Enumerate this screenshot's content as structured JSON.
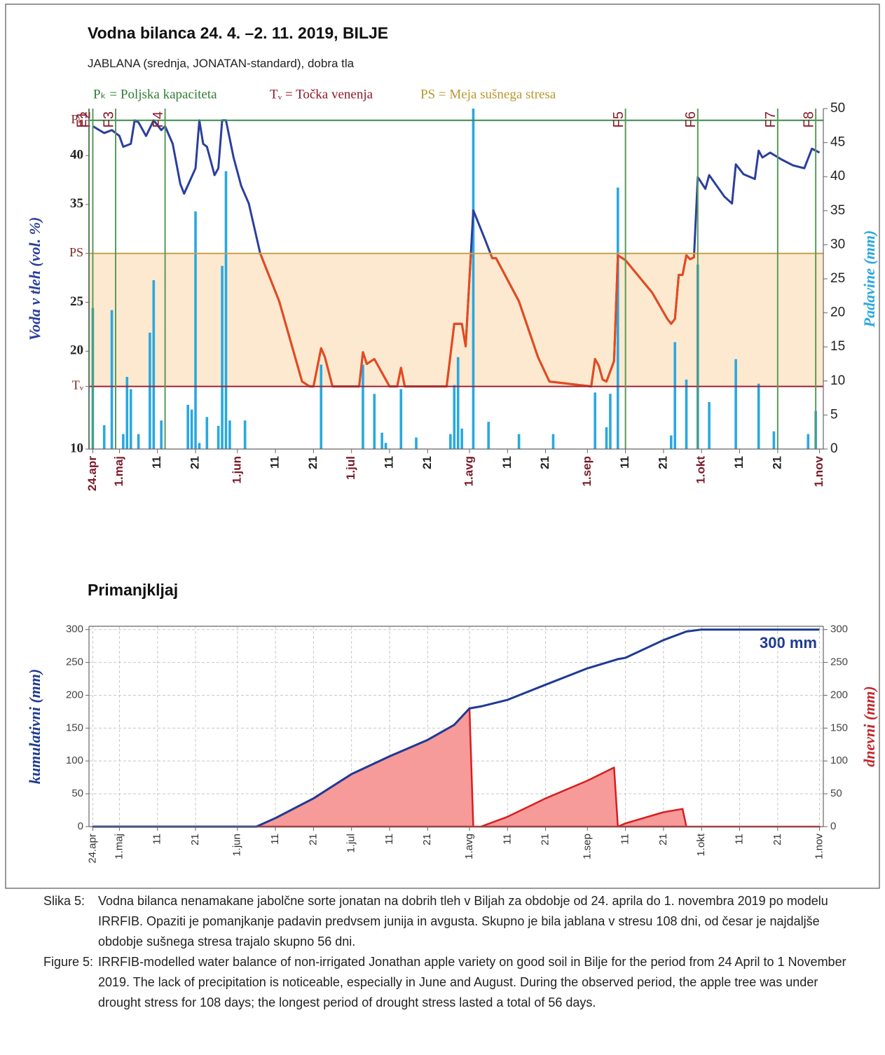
{
  "chart_data": [
    {
      "type": "line",
      "title": "Vodna bilanca 24. 4. –2. 11. 2019, BILJE",
      "subtitle": "JABLANA (srednja, JONATAN-standard), dobra tla",
      "annotations": [
        {
          "text": "Pₖ = Poljska kapaciteta",
          "color": "#2e7d32"
        },
        {
          "text": "Tᵥ = Točka venenja",
          "color": "#8b1a2b"
        },
        {
          "text": "PS = Meja sušnega stresa",
          "color": "#b8962e"
        }
      ],
      "ylabel": "Voda v tleh (vol. %)",
      "ylabel_color": "#2b3f9e",
      "y2label": "Padavine (mm)",
      "y2label_color": "#29a8e0",
      "xlim": [
        "2019-04-23",
        "2019-11-02"
      ],
      "xticks": [
        {
          "value": "2019-04-24",
          "label": "24.apr"
        },
        {
          "value": "2019-05-01",
          "label": "1.maj"
        },
        {
          "value": "2019-05-11",
          "label": "11"
        },
        {
          "value": "2019-05-21",
          "label": "21"
        },
        {
          "value": "2019-06-01",
          "label": "1.jun"
        },
        {
          "value": "2019-06-11",
          "label": "11"
        },
        {
          "value": "2019-06-21",
          "label": "21"
        },
        {
          "value": "2019-07-01",
          "label": "1.jul"
        },
        {
          "value": "2019-07-11",
          "label": "11"
        },
        {
          "value": "2019-07-21",
          "label": "21"
        },
        {
          "value": "2019-08-01",
          "label": "1.avg"
        },
        {
          "value": "2019-08-11",
          "label": "11"
        },
        {
          "value": "2019-08-21",
          "label": "21"
        },
        {
          "value": "2019-09-01",
          "label": "1.sep"
        },
        {
          "value": "2019-09-11",
          "label": "11"
        },
        {
          "value": "2019-09-21",
          "label": "21"
        },
        {
          "value": "2019-10-01",
          "label": "1.okt"
        },
        {
          "value": "2019-10-11",
          "label": "11"
        },
        {
          "value": "2019-10-21",
          "label": "21"
        },
        {
          "value": "2019-11-01",
          "label": "1.nov"
        }
      ],
      "month_label_color": "#7a1a2a",
      "ylim": [
        10,
        44.8
      ],
      "yticks": [
        10,
        {
          "value": 16.4,
          "label": "Tᵥ"
        },
        20,
        25,
        {
          "value": 30,
          "label": "PS"
        },
        35,
        40,
        {
          "value": 43.6,
          "label": "Pₖ"
        }
      ],
      "y2lim": [
        0,
        50
      ],
      "y2ticks": [
        0,
        5,
        10,
        15,
        20,
        25,
        30,
        35,
        40,
        45,
        50
      ],
      "grid": false,
      "stress_band": {
        "from": 16.4,
        "to": 30,
        "color": "#fde9cf"
      },
      "reference_lines": [
        {
          "value": 43.6,
          "color": "#3a8a4a"
        },
        {
          "value": 30,
          "color": "#c8a04a"
        },
        {
          "value": 16.4,
          "color": "#9b2335"
        }
      ],
      "phase_color": "#5a9a5a",
      "phases": [
        {
          "label": "F1",
          "x": "2019-04-23"
        },
        {
          "label": "F2",
          "x": "2019-04-24"
        },
        {
          "label": "F3",
          "x": "2019-04-30"
        },
        {
          "label": "F4",
          "x": "2019-05-13"
        },
        {
          "label": "F5",
          "x": "2019-09-11"
        },
        {
          "label": "F6",
          "x": "2019-09-30"
        },
        {
          "label": "F7",
          "x": "2019-10-21"
        },
        {
          "label": "F8",
          "x": "2019-10-31"
        }
      ],
      "series": [
        {
          "type": "bar",
          "axis": "y2",
          "color": "#29a8e0",
          "x": [
            "2019-04-24",
            "2019-04-27",
            "2019-04-29",
            "2019-05-02",
            "2019-05-03",
            "2019-05-04",
            "2019-05-06",
            "2019-05-09",
            "2019-05-10",
            "2019-05-12",
            "2019-05-19",
            "2019-05-20",
            "2019-05-21",
            "2019-05-22",
            "2019-05-24",
            "2019-05-27",
            "2019-05-28",
            "2019-05-29",
            "2019-05-30",
            "2019-06-03",
            "2019-06-23",
            "2019-07-04",
            "2019-07-07",
            "2019-07-09",
            "2019-07-10",
            "2019-07-14",
            "2019-07-18",
            "2019-07-27",
            "2019-07-28",
            "2019-07-29",
            "2019-07-30",
            "2019-08-02",
            "2019-08-06",
            "2019-08-14",
            "2019-08-23",
            "2019-09-03",
            "2019-09-06",
            "2019-09-07",
            "2019-09-09",
            "2019-09-23",
            "2019-09-24",
            "2019-09-27",
            "2019-09-30",
            "2019-10-03",
            "2019-10-10",
            "2019-10-16",
            "2019-10-20",
            "2019-10-29",
            "2019-10-31"
          ],
          "values": [
            20.7,
            3.5,
            20.4,
            2.2,
            10.6,
            8.8,
            2.2,
            17.1,
            24.8,
            4.2,
            6.5,
            5.8,
            34.9,
            0.9,
            4.7,
            3.4,
            26.9,
            40.8,
            4.2,
            4.2,
            12.4,
            12.4,
            8.1,
            2.4,
            0.9,
            8.8,
            1.7,
            2.2,
            9.4,
            13.5,
            3.0,
            50,
            4.0,
            2.2,
            2.2,
            8.3,
            3.2,
            8.1,
            38.4,
            2.0,
            15.7,
            10.2,
            27.1,
            6.9,
            13.2,
            9.6,
            2.6,
            2.2,
            5.6
          ]
        },
        {
          "type": "line",
          "color": "#2b3f9e",
          "stress_color": "#e8491d",
          "x": [
            "2019-04-24",
            "2019-04-27",
            "2019-04-29",
            "2019-05-01",
            "2019-05-02",
            "2019-05-04",
            "2019-05-05",
            "2019-05-06",
            "2019-05-08",
            "2019-05-10",
            "2019-05-12",
            "2019-05-13",
            "2019-05-15",
            "2019-05-17",
            "2019-05-18",
            "2019-05-21",
            "2019-05-22",
            "2019-05-23",
            "2019-05-24",
            "2019-05-26",
            "2019-05-27",
            "2019-05-28",
            "2019-05-29",
            "2019-05-31",
            "2019-06-02",
            "2019-06-04",
            "2019-06-07",
            "2019-06-12",
            "2019-06-18",
            "2019-06-20",
            "2019-06-21",
            "2019-06-23",
            "2019-06-24",
            "2019-06-26",
            "2019-07-03",
            "2019-07-04",
            "2019-07-05",
            "2019-07-07",
            "2019-07-08",
            "2019-07-10",
            "2019-07-11",
            "2019-07-13",
            "2019-07-14",
            "2019-07-15",
            "2019-07-26",
            "2019-07-28",
            "2019-07-30",
            "2019-07-31",
            "2019-08-02",
            "2019-08-05",
            "2019-08-07",
            "2019-08-08",
            "2019-08-14",
            "2019-08-19",
            "2019-08-22",
            "2019-09-02",
            "2019-09-03",
            "2019-09-04",
            "2019-09-05",
            "2019-09-06",
            "2019-09-08",
            "2019-09-09",
            "2019-09-11",
            "2019-09-18",
            "2019-09-22",
            "2019-09-23",
            "2019-09-24",
            "2019-09-25",
            "2019-09-26",
            "2019-09-27",
            "2019-09-28",
            "2019-09-29",
            "2019-09-30",
            "2019-10-02",
            "2019-10-03",
            "2019-10-07",
            "2019-10-09",
            "2019-10-10",
            "2019-10-12",
            "2019-10-15",
            "2019-10-16",
            "2019-10-17",
            "2019-10-19",
            "2019-10-22",
            "2019-10-25",
            "2019-10-28",
            "2019-10-30",
            "2019-11-01"
          ],
          "values": [
            43.0,
            42.3,
            42.6,
            42.0,
            40.9,
            41.2,
            43.6,
            43.4,
            42.0,
            43.6,
            42.6,
            43.0,
            41.2,
            37.1,
            36.1,
            38.7,
            43.6,
            41.2,
            40.9,
            38.0,
            38.7,
            43.6,
            43.6,
            39.8,
            36.9,
            35.1,
            30.0,
            25.1,
            16.9,
            16.4,
            16.4,
            20.3,
            19.4,
            16.4,
            16.4,
            19.9,
            18.7,
            19.2,
            18.5,
            17.1,
            16.4,
            16.4,
            18.3,
            16.4,
            16.4,
            22.8,
            22.8,
            20.5,
            34.4,
            31.5,
            29.5,
            29.5,
            25.1,
            19.4,
            16.9,
            16.4,
            19.2,
            18.5,
            17.1,
            16.9,
            19.0,
            29.8,
            29.3,
            26.0,
            23.3,
            22.8,
            23.3,
            27.8,
            27.8,
            29.8,
            29.4,
            29.6,
            37.8,
            36.6,
            38.0,
            35.8,
            35.1,
            39.1,
            38.1,
            37.6,
            40.5,
            39.8,
            40.3,
            39.6,
            39.0,
            38.7,
            40.7,
            40.3
          ]
        }
      ]
    },
    {
      "type": "area",
      "title": "Primanjkljaj",
      "annotations": [
        {
          "text": "300 mm",
          "color": "#1f3a93"
        }
      ],
      "ylabel": "kumulativni (mm)",
      "ylabel_color": "#1f3a93",
      "y2label": "dnevni (mm)",
      "y2label_color": "#c0282d",
      "xlim": [
        "2019-04-23",
        "2019-11-02"
      ],
      "xticks": [
        {
          "value": "2019-04-24",
          "label": "24.apr"
        },
        {
          "value": "2019-05-01",
          "label": "1.maj"
        },
        {
          "value": "2019-05-11",
          "label": "11"
        },
        {
          "value": "2019-05-21",
          "label": "21"
        },
        {
          "value": "2019-06-01",
          "label": "1.jun"
        },
        {
          "value": "2019-06-11",
          "label": "11"
        },
        {
          "value": "2019-06-21",
          "label": "21"
        },
        {
          "value": "2019-07-01",
          "label": "1.jul"
        },
        {
          "value": "2019-07-11",
          "label": "11"
        },
        {
          "value": "2019-07-21",
          "label": "21"
        },
        {
          "value": "2019-08-01",
          "label": "1.avg"
        },
        {
          "value": "2019-08-11",
          "label": "11"
        },
        {
          "value": "2019-08-21",
          "label": "21"
        },
        {
          "value": "2019-09-01",
          "label": "1.sep"
        },
        {
          "value": "2019-09-11",
          "label": "11"
        },
        {
          "value": "2019-09-21",
          "label": "21"
        },
        {
          "value": "2019-10-01",
          "label": "1.okt"
        },
        {
          "value": "2019-10-11",
          "label": "11"
        },
        {
          "value": "2019-10-21",
          "label": "21"
        },
        {
          "value": "2019-11-01",
          "label": "1.nov"
        }
      ],
      "ylim": [
        0,
        305
      ],
      "yticks": [
        0,
        50,
        100,
        150,
        200,
        250,
        300
      ],
      "y2lim": [
        0,
        305
      ],
      "y2ticks": [
        0,
        50,
        100,
        150,
        200,
        250,
        300
      ],
      "grid": true,
      "series": [
        {
          "type": "area",
          "axis": "y2",
          "color": "#d81e1e",
          "fill": "#f79a9a",
          "x": [
            "2019-04-24",
            "2019-06-06",
            "2019-06-11",
            "2019-06-21",
            "2019-07-01",
            "2019-07-11",
            "2019-07-21",
            "2019-07-28",
            "2019-08-01",
            "2019-08-02",
            "2019-08-04",
            "2019-08-11",
            "2019-08-21",
            "2019-09-01",
            "2019-09-08",
            "2019-09-09",
            "2019-09-11",
            "2019-09-21",
            "2019-09-26",
            "2019-09-27",
            "2019-11-01"
          ],
          "values": [
            0,
            0,
            13,
            43,
            80,
            107,
            132,
            155,
            180,
            0,
            0,
            15,
            43,
            70,
            90,
            0,
            5,
            22,
            27,
            0,
            0
          ]
        },
        {
          "type": "line",
          "color": "#1f3a93",
          "x": [
            "2019-04-24",
            "2019-06-06",
            "2019-06-11",
            "2019-06-21",
            "2019-07-01",
            "2019-07-11",
            "2019-07-21",
            "2019-07-28",
            "2019-08-01",
            "2019-08-04",
            "2019-08-11",
            "2019-08-21",
            "2019-09-01",
            "2019-09-09",
            "2019-09-11",
            "2019-09-21",
            "2019-09-27",
            "2019-10-01",
            "2019-11-01"
          ],
          "values": [
            0,
            0,
            13,
            43,
            80,
            107,
            132,
            155,
            180,
            183,
            193,
            216,
            241,
            255,
            257,
            284,
            297,
            300,
            300
          ]
        }
      ]
    }
  ],
  "caption": [
    {
      "label": "Slika 5:",
      "text": "Vodna bilanca nenamakane jabolčne sorte jonatan na dobrih tleh v Biljah za obdobje od 24. aprila do 1. novembra 2019 po modelu IRRFIB. Opaziti je pomanjkanje padavin predvsem junija in avgusta. Skupno je bila jablana v stresu 108 dni, od česar je najdaljše obdobje sušnega stresa trajalo skupno 56 dni."
    },
    {
      "label": "Figure 5:",
      "text": "IRRFIB-modelled water balance of non-irrigated Jonathan apple variety on good soil in Bilje for the period from 24 April to 1 November 2019. The lack of precipitation is noticeable, especially in June and August. During the observed period, the apple tree was under drought stress for 108 days; the longest period of drought stress lasted a total of 56 days."
    }
  ]
}
